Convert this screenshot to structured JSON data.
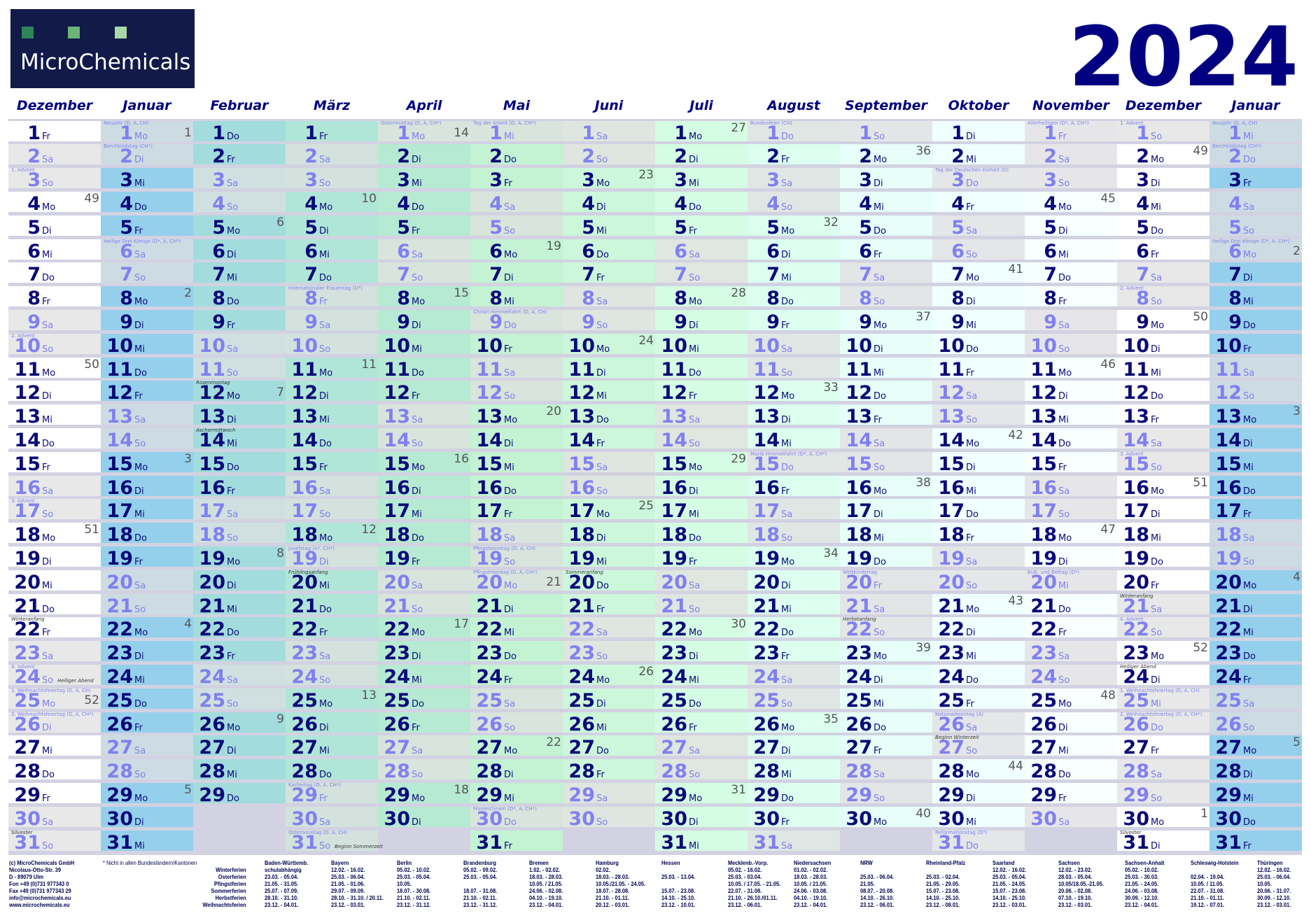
{
  "logo": {
    "text": "MicroChemicals",
    "square_colors": [
      "#2e8557",
      "#6db378",
      "#a8d8a8"
    ],
    "background": "#111a48"
  },
  "year": "2024",
  "weekday_abbr": [
    "So",
    "Mo",
    "Di",
    "Mi",
    "Do",
    "Fr",
    "Sa"
  ],
  "colors": {
    "grid": "#d2d2e2",
    "text_day": "#0a0a78",
    "text_holiday": "#8080f0",
    "header": "#000080"
  },
  "months": [
    {
      "name": "Dezember",
      "y": 2023,
      "m": 12,
      "bg": "#ffffff",
      "we": "#e8e8e8",
      "labels": {
        "3": "1. Advent",
        "10": "2. Advent",
        "17": "3. Advent",
        "24": "4. Advent",
        "25": "1. Weihnachtsfeiertag (D, A, CH)",
        "26": "2. Weihnachtsfeiertag (D, A, CH*)"
      },
      "notes": {
        "22": "Winteranfang",
        "24": "Heiliger Abend",
        "31": "Silvester"
      }
    },
    {
      "name": "Januar",
      "y": 2024,
      "m": 1,
      "bg": "#94d0ec",
      "we": "#cddce3",
      "labels": {
        "1": "Neujahr (D, A, CH)",
        "2": "Berchtoldstag (CH*)",
        "6": "Heilige Drei Könige (D*, A, CH*)"
      },
      "notes": {}
    },
    {
      "name": "Februar",
      "y": 2024,
      "m": 2,
      "bg": "#a2dcdc",
      "we": "#d0e0e0",
      "labels": {},
      "notes": {
        "12": "Rosenmontag",
        "14": "Aschermittwoch"
      }
    },
    {
      "name": "März",
      "y": 2024,
      "m": 3,
      "bg": "#b0e6d8",
      "we": "#d3e2dd",
      "labels": {
        "8": "Internationaler Frauentag (D*)",
        "19": "Josefstag (A*, CH*)",
        "29": "Karfreitag (D, A, CH*)",
        "31": "Ostersonntag (D, A, CH)"
      },
      "notes": {
        "20": "Frühlingsanfang",
        "31": "Beginn Sommerzeit"
      }
    },
    {
      "name": "April",
      "y": 2024,
      "m": 4,
      "bg": "#b6ead2",
      "we": "#d8e4dc",
      "labels": {
        "1": "Ostermontag (D, A, CH*)"
      },
      "notes": {}
    },
    {
      "name": "Mai",
      "y": 2024,
      "m": 5,
      "bg": "#c3f3d3",
      "we": "#d9e4dc",
      "labels": {
        "1": "Tag der Arbeit (D, A, CH*)",
        "9": "Christi Himmelfahrt (D, A, CH)",
        "19": "Pfingstsonntag (D, A, CH)",
        "20": "Pfingstmontag (D, A, CH*)",
        "30": "Fronleichnam (D*, A, CH*)"
      },
      "notes": {}
    },
    {
      "name": "Juni",
      "y": 2024,
      "m": 6,
      "bg": "#ccf7da",
      "we": "#dfe5df",
      "labels": {},
      "notes": {
        "20": "Sommeranfang"
      }
    },
    {
      "name": "Juli",
      "y": 2024,
      "m": 7,
      "bg": "#d4fde3",
      "we": "#e0e6e0",
      "labels": {},
      "notes": {}
    },
    {
      "name": "August",
      "y": 2024,
      "m": 8,
      "bg": "#dcfff0",
      "we": "#e0e6e3",
      "labels": {
        "1": "Bundesfeier (CH)",
        "15": "Mariä Himmelfahrt (D*, A, CH*)"
      },
      "notes": {}
    },
    {
      "name": "September",
      "y": 2024,
      "m": 9,
      "bg": "#e6fff8",
      "we": "#e3e6e6",
      "labels": {
        "20": "Weltkindertag"
      },
      "notes": {
        "22": "Herbstanfang"
      }
    },
    {
      "name": "Oktober",
      "y": 2024,
      "m": 10,
      "bg": "#f0ffff",
      "we": "#e4e6e8",
      "labels": {
        "3": "Tag der Deutschen Einheit (D)",
        "26": "Nationalfeiertag (A)",
        "31": "Reformationstag (D*)"
      },
      "notes": {
        "27": "Beginn Winterzeit"
      }
    },
    {
      "name": "November",
      "y": 2024,
      "m": 11,
      "bg": "#f8ffff",
      "we": "#e6e6e8",
      "labels": {
        "1": "Allerheiligen (D*, A, CH*)",
        "20": "Buß- und Bettag (D*)"
      },
      "notes": {}
    },
    {
      "name": "Dezember",
      "y": 2024,
      "m": 12,
      "bg": "#ffffff",
      "we": "#e8e8e8",
      "labels": {
        "1": "1. Advent",
        "8": "2. Advent",
        "15": "3. Advent",
        "22": "4. Advent",
        "25": "1. Weihnachtsfeiertag (D, A, CH)",
        "26": "2. Weihnachtsfeiertag (D, A, CH*)"
      },
      "notes": {
        "21": "Winteranfang",
        "24": "Heiliger Abend",
        "31": "Silvester"
      }
    },
    {
      "name": "Januar",
      "y": 2025,
      "m": 1,
      "bg": "#94d0ec",
      "we": "#cddce3",
      "labels": {
        "1": "Neujahr (D, A, CH)",
        "2": "Berchtoldstag (CH*)",
        "6": "Heilige Drei Könige (D*, A, CH*)"
      },
      "notes": {}
    }
  ],
  "footer": {
    "company": [
      "(c) MicroChemicals GmbH",
      "Nicolaus-Otto-Str. 39",
      "D - 89079 Ulm",
      "Fon +49 (0)731 977343 0",
      "Fax +49 (0)731 977343 29",
      "info@microchemicals.eu",
      "www.microchemicals.eu"
    ],
    "note": "* Nicht in allen Bundesländern/Kantonen",
    "labels": [
      "Winterferien",
      "Osterferien",
      "Pfingstferien",
      "Sommerferien",
      "Herbstferien",
      "Weihnachtsferien"
    ],
    "states": [
      {
        "name": "Baden-Württemb.",
        "dates": [
          "schulabhängig",
          "23.03. - 05.04.",
          "21.05. - 31.05.",
          "25.07. - 07.09.",
          "28.10. - 31.10.",
          "23.12. - 04.01."
        ]
      },
      {
        "name": "Bayern",
        "dates": [
          "12.02. - 16.02.",
          "25.03. - 06.04.",
          "21.05. - 01.06.",
          "29.07. - 09.09.",
          "28.10. - 31.10. / 20.11.",
          "23.12. - 03.01."
        ]
      },
      {
        "name": "Berlin",
        "dates": [
          "05.02. - 10.02.",
          "25.03. - 05.04.",
          "10.05.",
          "18.07. - 30.08.",
          "21.10. - 02.11.",
          "23.12. - 31.12."
        ]
      },
      {
        "name": "Brandenburg",
        "dates": [
          "05.02. - 09.02.",
          "25.03. - 05.04.",
          "",
          "18.07. - 31.08.",
          "21.10. - 02.11.",
          "23.12. - 31.12."
        ]
      },
      {
        "name": "Bremen",
        "dates": [
          "1.02. - 02.02.",
          "18.03. - 28.03.",
          "10.05. / 21.05.",
          "24.06. - 02.08.",
          "04.10. - 19.10.",
          "23.12. - 04.01."
        ]
      },
      {
        "name": "Hamburg",
        "dates": [
          "02.02.",
          "18.03. - 28.03.",
          "10.05./21.05. - 24.05.",
          "18.07. - 28.08.",
          "21.10. - 01.11.",
          "20.12. - 03.01."
        ]
      },
      {
        "name": "Hessen",
        "dates": [
          "",
          "25.03. - 13.04.",
          "",
          "15.07. - 23.08.",
          "14.10. - 25.10.",
          "23.12. - 10.01."
        ]
      },
      {
        "name": "Mecklenb.-Vorp.",
        "dates": [
          "05.02. - 16.02.",
          "25.03. - 03.04.",
          "10.05. / 17.05. - 21.05.",
          "22.07. - 31.08.",
          "21.10. - 26.10./01.11.",
          "23.12. - 06.01."
        ]
      },
      {
        "name": "Niedersachsen",
        "dates": [
          "01.02. - 02.02.",
          "18.03. - 28.03.",
          "10.05. / 21.05.",
          "24.06. - 03.08.",
          "04.10. - 19.10.",
          "23.12. - 04.01."
        ]
      },
      {
        "name": "NRW",
        "dates": [
          "",
          "25.03. - 06.04.",
          "21.05.",
          "08.07. - 20.08.",
          "14.10. - 26.10.",
          "23.12. - 06.01."
        ]
      },
      {
        "name": "Rheinland-Pfalz",
        "dates": [
          "",
          "25.03. - 02.04.",
          "21.05. - 29.05.",
          "15.07. - 23.08.",
          "14.10. - 25.10.",
          "23.12. - 08.01."
        ]
      },
      {
        "name": "Saarland",
        "dates": [
          "12.02. - 16.02.",
          "25.03. - 05.04.",
          "21.05. - 24.05.",
          "15.07. - 23.08.",
          "14.10. - 25.10.",
          "23.12. - 03.01."
        ]
      },
      {
        "name": "Sachsen",
        "dates": [
          "12.02. - 23.02.",
          "28.03. - 05.04.",
          "10.05/18.05.-21.05.",
          "20.06. - 02.08.",
          "07.10. - 19.10.",
          "23.12. - 03.01."
        ]
      },
      {
        "name": "Sachsen-Anhalt",
        "dates": [
          "05.02. - 10.02.",
          "25.03. - 30.03.",
          "21.05. - 24.05.",
          "24.06. - 03.08.",
          "30.09. - 12.10.",
          "23.12. - 04.01."
        ]
      },
      {
        "name": "Schleswig-Holstein",
        "dates": [
          "",
          "02.04. - 19.04.",
          "10.05. / 11.05.",
          "22.07. - 31.08.",
          "21.10. - 01.11.",
          "19.12. - 07.01."
        ]
      },
      {
        "name": "Thüringen",
        "dates": [
          "12.02. - 16.02.",
          "25.03. - 06.04.",
          "10.05.",
          "20.06. - 31.07.",
          "30.09. - 12.10.",
          "23.12. - 03.01."
        ]
      }
    ]
  }
}
